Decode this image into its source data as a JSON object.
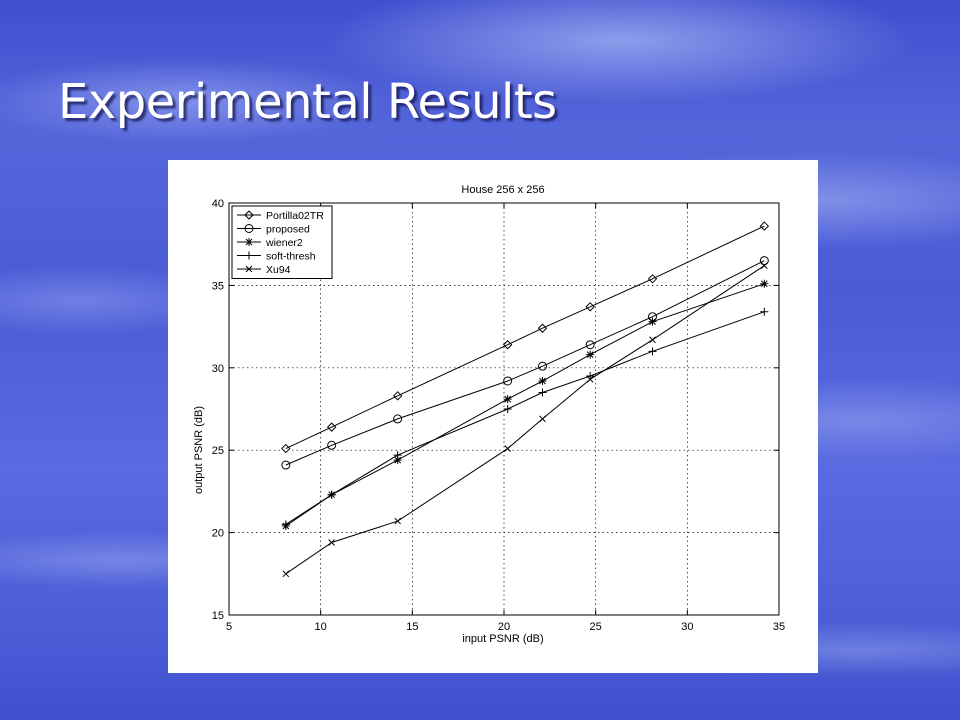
{
  "slide": {
    "title": "Experimental Results"
  },
  "chart_data": {
    "type": "line",
    "title": "House 256 x 256",
    "xlabel": "input PSNR (dB)",
    "ylabel": "output PSNR (dB)",
    "xlim": [
      5,
      35
    ],
    "ylim": [
      15,
      40
    ],
    "xticks": [
      5,
      10,
      15,
      20,
      25,
      30,
      35
    ],
    "yticks": [
      15,
      20,
      25,
      30,
      35,
      40
    ],
    "grid": true,
    "legend_position": "top-left",
    "series": [
      {
        "name": "Portilla02TR",
        "marker": "diamond",
        "x": [
          8.1,
          10.6,
          14.2,
          20.2,
          22.1,
          24.7,
          28.1,
          34.2
        ],
        "y": [
          25.1,
          26.4,
          28.3,
          31.4,
          32.4,
          33.7,
          35.4,
          38.6
        ]
      },
      {
        "name": "proposed",
        "marker": "circle",
        "x": [
          8.1,
          10.6,
          14.2,
          20.2,
          22.1,
          24.7,
          28.1,
          34.2
        ],
        "y": [
          24.1,
          25.3,
          26.9,
          29.2,
          30.1,
          31.4,
          33.1,
          36.5
        ]
      },
      {
        "name": "wiener2",
        "marker": "star",
        "x": [
          8.1,
          10.6,
          14.2,
          20.2,
          22.1,
          24.7,
          28.1,
          34.2
        ],
        "y": [
          20.4,
          22.3,
          24.4,
          28.1,
          29.2,
          30.8,
          32.8,
          35.1
        ]
      },
      {
        "name": "soft-thresh",
        "marker": "plus",
        "x": [
          8.1,
          10.6,
          14.2,
          20.2,
          22.1,
          24.7,
          28.1,
          34.2
        ],
        "y": [
          20.5,
          22.3,
          24.7,
          27.5,
          28.5,
          29.5,
          31.0,
          33.4
        ]
      },
      {
        "name": "Xu94",
        "marker": "x",
        "x": [
          8.1,
          10.6,
          14.2,
          20.2,
          22.1,
          24.7,
          28.1,
          34.2
        ],
        "y": [
          17.5,
          19.4,
          20.7,
          25.1,
          26.9,
          29.3,
          31.7,
          36.2
        ]
      }
    ]
  }
}
